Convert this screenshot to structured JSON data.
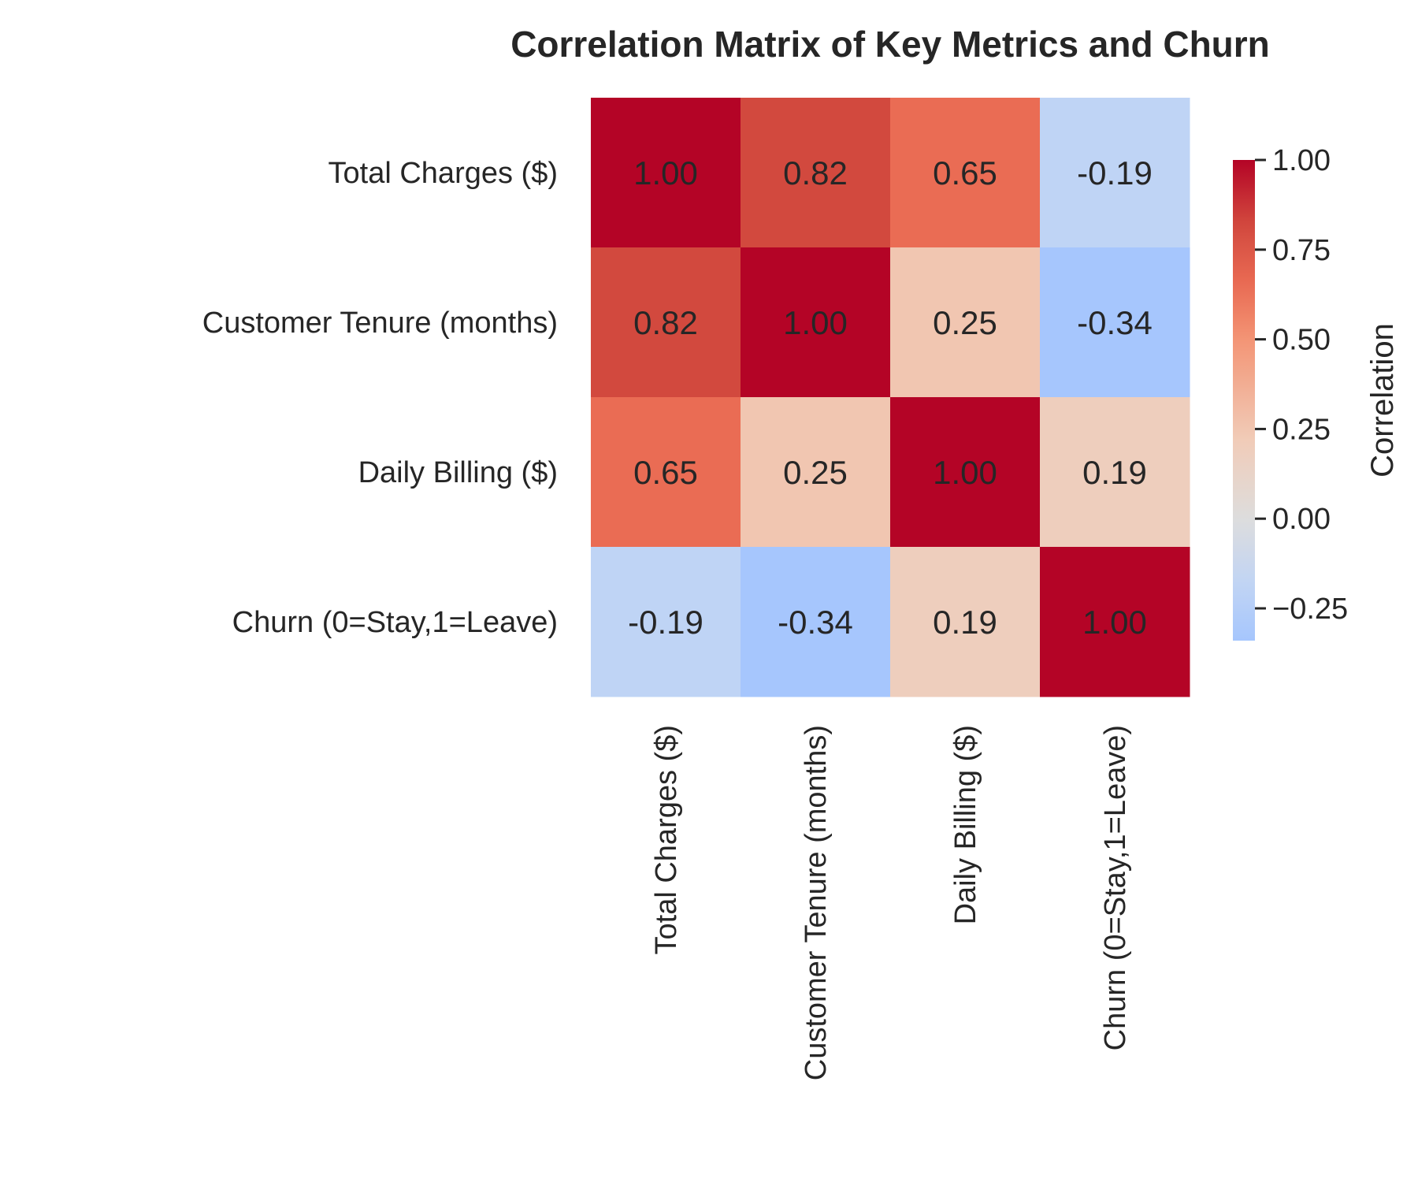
{
  "chart_data": {
    "type": "heatmap",
    "title": "Correlation Matrix of Key Metrics and Churn",
    "row_labels": [
      "Total Charges ($)",
      "Customer Tenure (months)",
      "Daily Billing ($)",
      "Churn (0=Stay,1=Leave)"
    ],
    "col_labels": [
      "Total Charges ($)",
      "Customer Tenure (months)",
      "Daily Billing ($)",
      "Churn (0=Stay,1=Leave)"
    ],
    "values": [
      [
        1.0,
        0.82,
        0.65,
        -0.19
      ],
      [
        0.82,
        1.0,
        0.25,
        -0.34
      ],
      [
        0.65,
        0.25,
        1.0,
        0.19
      ],
      [
        -0.19,
        -0.34,
        0.19,
        1.0
      ]
    ],
    "value_labels": [
      [
        "1.00",
        "0.82",
        "0.65",
        "-0.19"
      ],
      [
        "0.82",
        "1.00",
        "0.25",
        "-0.34"
      ],
      [
        "0.65",
        "0.25",
        "1.00",
        "0.19"
      ],
      [
        "-0.19",
        "-0.34",
        "0.19",
        "1.00"
      ]
    ],
    "colormap": "coolwarm",
    "vmin": -0.34,
    "vmax": 1.0,
    "center": 0.0,
    "colorbar": {
      "label": "Correlation",
      "ticks": [
        1.0,
        0.75,
        0.5,
        0.25,
        0.0,
        -0.25
      ],
      "tick_labels": [
        "1.00",
        "0.75",
        "0.50",
        "0.25",
        "0.00",
        "−0.25"
      ]
    },
    "grid": false,
    "colors": {
      "max": "#b40426",
      "center": "#dddddd",
      "min": "#a6c6fd",
      "text_dark": "#262626",
      "text_light": "#ffffff"
    }
  }
}
